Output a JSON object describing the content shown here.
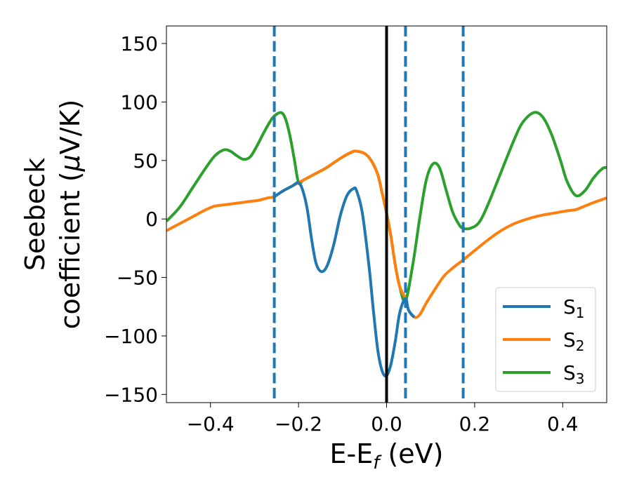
{
  "chart_data": {
    "type": "line",
    "xlabel": {
      "main": "E-E",
      "sub": "f",
      "unit": " (eV)"
    },
    "ylabel": {
      "line1": "Seebeck",
      "line2_prefix": "coefficient  (",
      "line2_mu": "μ",
      "line2_suffix": "V/K)"
    },
    "xlim": [
      -0.5,
      0.5
    ],
    "ylim": [
      -157,
      165
    ],
    "xticks": [
      -0.4,
      -0.2,
      0.0,
      0.2,
      0.4
    ],
    "xtick_labels": [
      "−0.4",
      "−0.2",
      "0.0",
      "0.2",
      "0.4"
    ],
    "yticks": [
      -150,
      -100,
      -50,
      0,
      50,
      100,
      150
    ],
    "ytick_labels": [
      "−150",
      "−100",
      "−50",
      "0",
      "50",
      "100",
      "150"
    ],
    "grid": false,
    "legend_position": "bottom-right",
    "vertical_lines": [
      {
        "x": -0.255,
        "style": "dashed",
        "color": "#1f77b4"
      },
      {
        "x": 0.0,
        "style": "solid",
        "color": "#000000"
      },
      {
        "x": 0.043,
        "style": "dashed",
        "color": "#1f77b4"
      },
      {
        "x": 0.174,
        "style": "dashed",
        "color": "#1f77b4"
      }
    ],
    "series": [
      {
        "name": "S",
        "sub": "1",
        "color": "#1f77b4",
        "x": [
          -0.255,
          -0.235,
          -0.215,
          -0.2,
          -0.19,
          -0.18,
          -0.17,
          -0.16,
          -0.148,
          -0.135,
          -0.12,
          -0.105,
          -0.09,
          -0.075,
          -0.068,
          -0.055,
          -0.04,
          -0.03,
          -0.02,
          -0.01,
          0.0,
          0.01,
          0.02,
          0.03,
          0.043,
          0.05,
          0.063
        ],
        "y": [
          19,
          24,
          28,
          31,
          24,
          8,
          -18,
          -38,
          -45,
          -40,
          -22,
          3,
          20,
          26,
          24,
          5,
          -40,
          -78,
          -112,
          -130,
          -134,
          -124,
          -104,
          -80,
          -68,
          -78,
          -84
        ]
      },
      {
        "name": "S",
        "sub": "2",
        "color": "#ff7f0e",
        "x": [
          -0.5,
          -0.47,
          -0.44,
          -0.41,
          -0.39,
          -0.37,
          -0.35,
          -0.33,
          -0.31,
          -0.29,
          -0.27,
          -0.255,
          -0.235,
          -0.215,
          -0.2,
          -0.19,
          -0.175,
          -0.16,
          -0.14,
          -0.12,
          -0.1,
          -0.08,
          -0.07,
          -0.05,
          -0.035,
          -0.02,
          -0.01,
          0.0,
          0.01,
          0.02,
          0.03,
          0.043,
          0.05,
          0.063,
          0.075,
          0.09,
          0.11,
          0.13,
          0.15,
          0.174,
          0.2,
          0.23,
          0.26,
          0.29,
          0.32,
          0.35,
          0.38,
          0.41,
          0.43,
          0.45,
          0.47,
          0.5
        ],
        "y": [
          -10,
          -4,
          2,
          8,
          11,
          12,
          13,
          14,
          15,
          16,
          18,
          19,
          24,
          28,
          31,
          33,
          36,
          39,
          43,
          48,
          53,
          57,
          58,
          56,
          50,
          38,
          22,
          5,
          -15,
          -40,
          -58,
          -68,
          -78,
          -84,
          -82,
          -72,
          -60,
          -49,
          -42,
          -35,
          -27,
          -18,
          -10,
          -4,
          0,
          3,
          5,
          7,
          8,
          11,
          14,
          18
        ]
      },
      {
        "name": "S",
        "sub": "3",
        "color": "#2ca02c",
        "x": [
          -0.5,
          -0.47,
          -0.44,
          -0.41,
          -0.39,
          -0.37,
          -0.355,
          -0.34,
          -0.325,
          -0.31,
          -0.295,
          -0.28,
          -0.265,
          -0.255,
          -0.24,
          -0.23,
          -0.22,
          -0.21,
          -0.2,
          -0.19,
          -0.175,
          -0.16,
          -0.14,
          -0.12,
          -0.1,
          -0.08,
          -0.07,
          -0.05,
          -0.035,
          -0.02,
          -0.01,
          0.0,
          0.01,
          0.02,
          0.03,
          0.043,
          0.06,
          0.075,
          0.09,
          0.105,
          0.12,
          0.135,
          0.15,
          0.165,
          0.174,
          0.19,
          0.21,
          0.23,
          0.26,
          0.29,
          0.31,
          0.335,
          0.355,
          0.375,
          0.395,
          0.41,
          0.43,
          0.45,
          0.47,
          0.49,
          0.5
        ],
        "y": [
          -2,
          10,
          27,
          44,
          54,
          59,
          58,
          54,
          51,
          53,
          62,
          73,
          83,
          88,
          91,
          86,
          72,
          52,
          31,
          33,
          36,
          39,
          43,
          48,
          53,
          57,
          58,
          56,
          50,
          38,
          22,
          5,
          -15,
          -40,
          -58,
          -70,
          -38,
          0,
          33,
          47,
          44,
          25,
          6,
          -5,
          -8,
          -8,
          -3,
          12,
          40,
          68,
          83,
          91,
          87,
          72,
          50,
          32,
          20,
          24,
          35,
          43,
          44
        ]
      }
    ]
  }
}
